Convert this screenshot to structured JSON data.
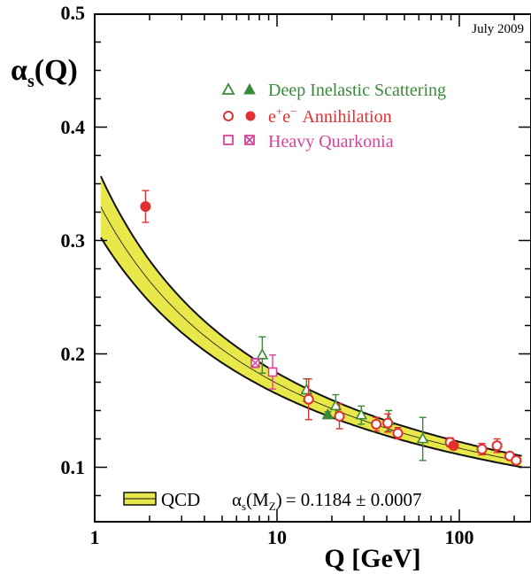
{
  "chart_data": {
    "type": "scatter",
    "note_top_right": "July 2009",
    "ylabel": {
      "main": "α",
      "sub": "s",
      "suffix": "(Q)"
    },
    "xlabel": "Q [GeV]",
    "xscale": "log",
    "xlim": [
      1,
      220
    ],
    "ylim": [
      0.05,
      0.5
    ],
    "x_ticks": [
      {
        "value": 1,
        "label": "1"
      },
      {
        "value": 10,
        "label": "10"
      },
      {
        "value": 100,
        "label": "100"
      }
    ],
    "y_ticks": [
      {
        "value": 0.1,
        "label": "0.1"
      },
      {
        "value": 0.2,
        "label": "0.2"
      },
      {
        "value": 0.3,
        "label": "0.3"
      },
      {
        "value": 0.4,
        "label": "0.4"
      },
      {
        "value": 0.5,
        "label": "0.5"
      }
    ],
    "legend": {
      "placement": "top-right",
      "entries": [
        {
          "label": "Deep Inelastic Scattering",
          "color": "#3a8a3a",
          "markers": [
            "triangle-open",
            "triangle-filled"
          ]
        },
        {
          "label": "Annihilation",
          "prefix": "e",
          "sup1": "+",
          "mid": "e",
          "sup2": "−",
          "color": "#e23030",
          "markers": [
            "circle-open",
            "circle-filled"
          ]
        },
        {
          "label": "Heavy Quarkonia",
          "color": "#d6449a",
          "markers": [
            "square-open",
            "square-crossed"
          ]
        }
      ]
    },
    "band_legend": {
      "label": "QCD",
      "fit_text": "= 0.1184 ± 0.0007",
      "fit_symbol": "α",
      "fit_sub": "s",
      "fit_arg": "(M",
      "fit_arg_sub": "Z",
      "fit_arg_close": ")"
    },
    "qcd_curve": {
      "alpha_mz": 0.1184,
      "mz": 91.19,
      "band_color": "#e8e84a",
      "edge_color": "#111111",
      "x_range": [
        1.08,
        220
      ]
    },
    "series": [
      {
        "name": "Deep Inelastic Scattering",
        "color": "#3a8a3a",
        "points": [
          {
            "x": 8.3,
            "y": 0.199,
            "err": 0.016,
            "marker": "triangle-open"
          },
          {
            "x": 14.5,
            "y": 0.168,
            "err": 0.01,
            "marker": "triangle-open"
          },
          {
            "x": 21,
            "y": 0.154,
            "err": 0.01,
            "marker": "triangle-open"
          },
          {
            "x": 29,
            "y": 0.146,
            "err": 0.008,
            "marker": "triangle-open"
          },
          {
            "x": 41,
            "y": 0.141,
            "err": 0.009,
            "marker": "triangle-open"
          },
          {
            "x": 63,
            "y": 0.125,
            "err": 0.019,
            "marker": "triangle-open"
          },
          {
            "x": 19,
            "y": 0.146,
            "err": 0.003,
            "marker": "triangle-filled"
          }
        ]
      },
      {
        "name": "Annihilation",
        "color": "#e23030",
        "points": [
          {
            "x": 1.9,
            "y": 0.33,
            "err": 0.014,
            "marker": "circle-filled"
          },
          {
            "x": 14.9,
            "y": 0.16,
            "err": 0.018,
            "marker": "circle-open"
          },
          {
            "x": 22,
            "y": 0.145,
            "err": 0.011,
            "marker": "circle-open"
          },
          {
            "x": 35,
            "y": 0.138,
            "err": 0.006,
            "marker": "circle-open"
          },
          {
            "x": 40.5,
            "y": 0.139,
            "err": 0.008,
            "marker": "circle-open"
          },
          {
            "x": 46,
            "y": 0.13,
            "err": 0.005,
            "marker": "circle-open"
          },
          {
            "x": 89,
            "y": 0.122,
            "err": 0.004,
            "marker": "circle-open"
          },
          {
            "x": 93,
            "y": 0.119,
            "err": 0.002,
            "marker": "circle-filled"
          },
          {
            "x": 133,
            "y": 0.116,
            "err": 0.005,
            "marker": "circle-open"
          },
          {
            "x": 161,
            "y": 0.119,
            "err": 0.006,
            "marker": "circle-open"
          },
          {
            "x": 189,
            "y": 0.11,
            "err": 0.003,
            "marker": "circle-open"
          },
          {
            "x": 205,
            "y": 0.106,
            "err": 0.003,
            "marker": "circle-open"
          }
        ]
      },
      {
        "name": "Heavy Quarkonia",
        "color": "#d6449a",
        "points": [
          {
            "x": 7.6,
            "y": 0.192,
            "err": 0.004,
            "marker": "square-crossed"
          },
          {
            "x": 9.46,
            "y": 0.184,
            "err": 0.015,
            "marker": "square-open"
          }
        ]
      }
    ]
  }
}
